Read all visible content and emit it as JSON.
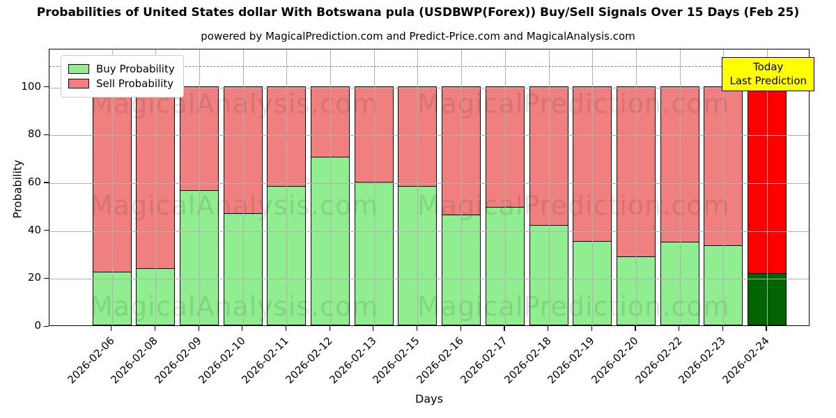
{
  "chart_data": {
    "type": "bar",
    "stacked": true,
    "title": "Probabilities of United States dollar With Botswana pula (USDBWP(Forex)) Buy/Sell Signals Over 15 Days (Feb 25)",
    "subtitle": "powered by MagicalPrediction.com and Predict-Price.com and MagicalAnalysis.com",
    "xlabel": "Days",
    "ylabel": "Probability",
    "categories": [
      "2026-02-06",
      "2026-02-08",
      "2026-02-09",
      "2026-02-10",
      "2026-02-11",
      "2026-02-12",
      "2026-02-13",
      "2026-02-15",
      "2026-02-16",
      "2026-02-17",
      "2026-02-18",
      "2026-02-19",
      "2026-02-20",
      "2026-02-22",
      "2026-02-23",
      "2026-02-24"
    ],
    "series": [
      {
        "name": "Buy Probability",
        "color": "#90EE90",
        "values": [
          22.5,
          24,
          56.5,
          47,
          58.5,
          70.5,
          60,
          58.5,
          46.5,
          49.5,
          42,
          35.5,
          29,
          35,
          33.5,
          22
        ]
      },
      {
        "name": "Sell Probability",
        "color": "#F08080",
        "values": [
          77.5,
          76,
          43.5,
          53,
          41.5,
          29.5,
          40,
          41.5,
          53.5,
          50.5,
          58,
          64.5,
          71,
          65,
          66.5,
          78
        ]
      }
    ],
    "today_bar": {
      "category": "2026-02-24",
      "buy_color": "#006400",
      "sell_color": "#FF0000"
    },
    "yticks": [
      0,
      20,
      40,
      60,
      80,
      100
    ],
    "ylim": [
      0,
      116
    ],
    "dashed_line_value": 109,
    "grid": true,
    "legend_position": "upper-left",
    "edge_color": "#000000",
    "annotation_box": {
      "lines": [
        "Today",
        "Last Prediction"
      ],
      "bg_color": "#FFFF00",
      "border_color": "#000000"
    },
    "watermarks": {
      "left_text": "MagicalAnalysis.com",
      "right_text": "MagicalPrediction.com",
      "rows": 3
    }
  }
}
